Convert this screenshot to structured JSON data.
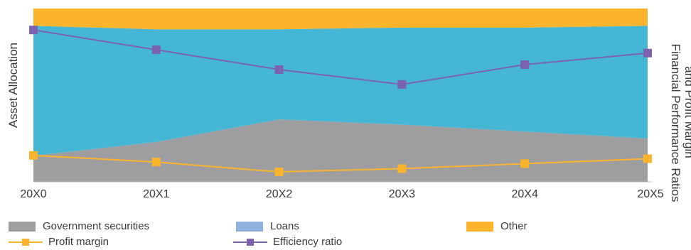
{
  "chart_data": {
    "type": "area",
    "categories": [
      "20X0",
      "20X1",
      "20X2",
      "20X3",
      "20X4",
      "20X5"
    ],
    "ylabel_left": "Asset Allocation",
    "ylabel_right_line1": "Financial Performance Ratios",
    "ylabel_right_line2": "and Profit Margin",
    "area_series": [
      {
        "name": "Government securities",
        "values": [
          15,
          23,
          36,
          33,
          29,
          25
        ],
        "color": "#9e9ea1"
      },
      {
        "name": "Loans",
        "values": [
          75,
          65,
          52,
          56,
          60,
          65
        ],
        "color": "#45b6d4"
      },
      {
        "name": "Other",
        "values": [
          10,
          12,
          12,
          11,
          11,
          10
        ],
        "color": "#fbb42c"
      }
    ],
    "ylim_left": [
      0,
      100
    ],
    "line_series": [
      {
        "name": "Profit margin",
        "values": [
          16,
          12,
          6,
          8,
          11,
          14
        ],
        "color": "#fbb42c"
      },
      {
        "name": "Efficiency ratio",
        "values": [
          92,
          80,
          68,
          59,
          71,
          78
        ],
        "color": "#7b63b0"
      }
    ],
    "ylim_right": [
      0,
      105
    ],
    "legend": [
      {
        "name": "Government securities",
        "kind": "area",
        "color": "#9e9ea1"
      },
      {
        "name": "Loans",
        "kind": "area",
        "color": "#8fb2dd"
      },
      {
        "name": "Other",
        "kind": "area",
        "color": "#fbb42c"
      },
      {
        "name": "Profit margin",
        "kind": "line",
        "color": "#fbb42c"
      },
      {
        "name": "Efficiency ratio",
        "kind": "line",
        "color": "#7b63b0"
      }
    ],
    "legend_placement": "bottom",
    "grid": false
  }
}
